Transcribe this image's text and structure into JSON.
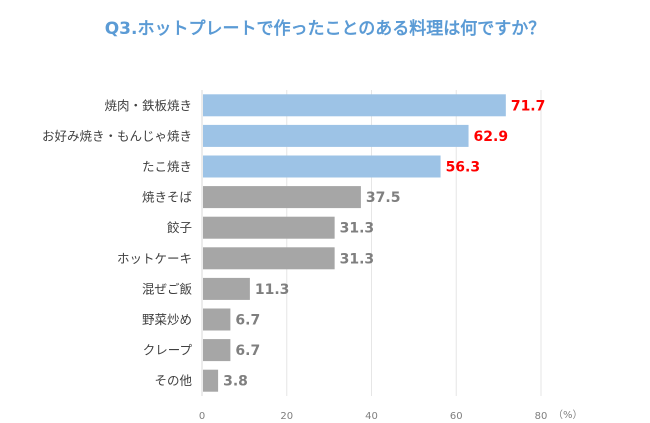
{
  "chart_data": {
    "type": "bar",
    "orientation": "horizontal",
    "title": "Q3.ホットプレートで作ったことのある料理は何ですか？",
    "categories": [
      "焼肉・鉄板焼き",
      "お好み焼き・もんじゃ焼き",
      "たこ焼き",
      "焼きそば",
      "餃子",
      "ホットケーキ",
      "混ぜご飯",
      "野菜炒め",
      "クレープ",
      "その他"
    ],
    "values": [
      71.7,
      62.9,
      56.3,
      37.5,
      31.3,
      31.3,
      11.3,
      6.7,
      6.7,
      3.8
    ],
    "value_labels": [
      "71.7",
      "62.9",
      "56.3",
      "37.5",
      "31.3",
      "31.3",
      "11.3",
      "6.7",
      "6.7",
      "3.8"
    ],
    "highlight_count": 3,
    "xlim": [
      0,
      80
    ],
    "xticks": [
      "0",
      "20",
      "40",
      "60",
      "80"
    ],
    "xunit": "（%）",
    "grid": true,
    "colors": {
      "highlight": "#9DC3E6",
      "normal": "#A6A6A6",
      "highlight_label": "#FF0000",
      "normal_label": "#7F7F7F",
      "title": "#5B9BD5"
    }
  }
}
